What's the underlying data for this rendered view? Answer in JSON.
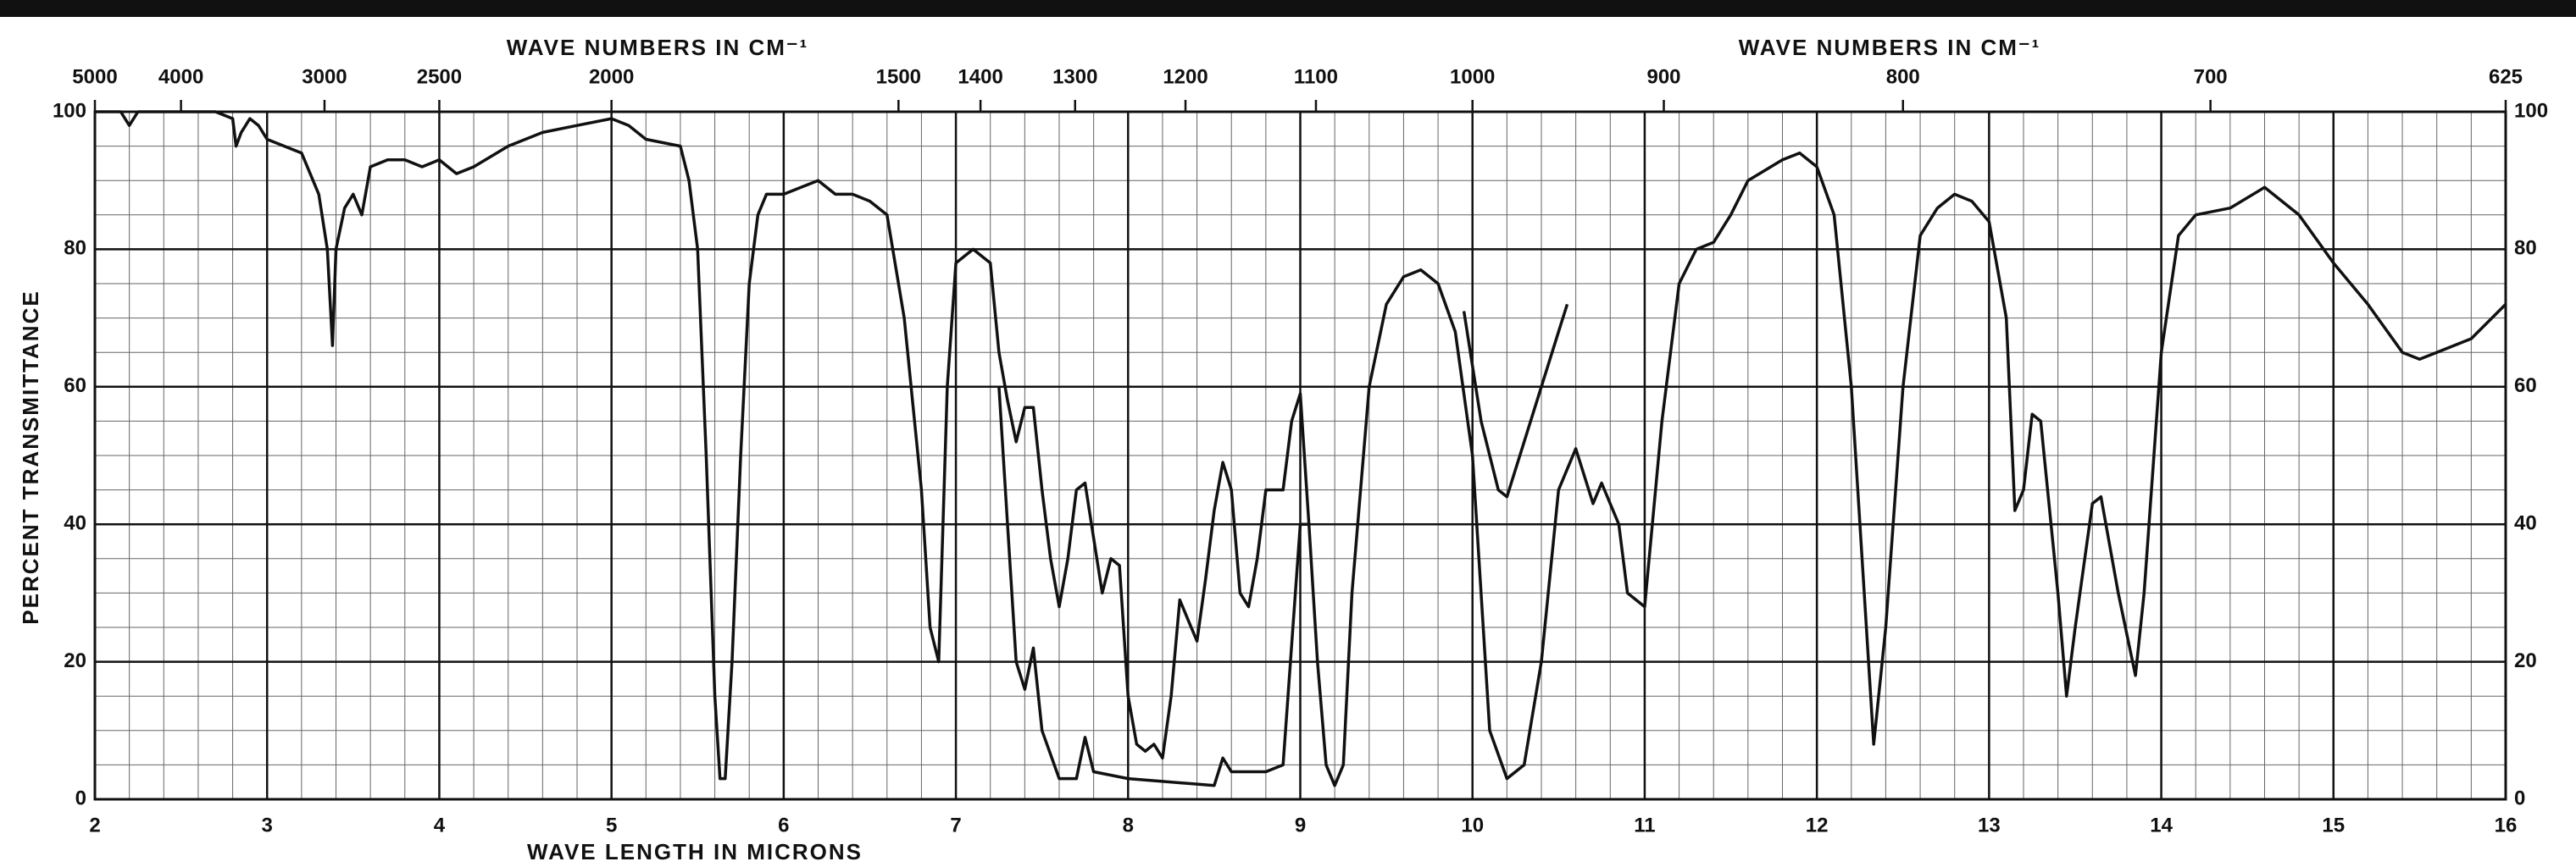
{
  "chart_data": {
    "type": "line",
    "x2label": "WAVE NUMBERS IN CM⁻¹",
    "xlabel": "WAVE LENGTH IN MICRONS",
    "ylabel": "PERCENT TRANSMITTANCE",
    "xlim": [
      2,
      16
    ],
    "xticks": [
      2,
      3,
      4,
      5,
      6,
      7,
      8,
      9,
      10,
      11,
      12,
      13,
      14,
      15,
      16
    ],
    "x2ticks": [
      5000,
      4000,
      3000,
      2500,
      2000,
      1500,
      1400,
      1300,
      1200,
      1100,
      1000,
      900,
      800,
      700,
      625
    ],
    "ylim": [
      0,
      100
    ],
    "yticks": [
      0,
      20,
      40,
      60,
      80,
      100
    ],
    "grid": true,
    "series": [
      {
        "color": "#111111",
        "x": [
          2.0,
          2.15,
          2.2,
          2.25,
          2.5,
          2.7,
          2.8,
          2.82,
          2.85,
          2.9,
          2.95,
          3.0,
          3.1,
          3.2,
          3.3,
          3.35,
          3.38,
          3.4,
          3.45,
          3.5,
          3.55,
          3.6,
          3.7,
          3.8,
          3.9,
          4.0,
          4.1,
          4.2,
          4.4,
          4.6,
          4.8,
          5.0,
          5.1,
          5.2,
          5.4,
          5.45,
          5.5,
          5.55,
          5.6,
          5.63,
          5.66,
          5.7,
          5.75,
          5.8,
          5.85,
          5.9,
          6.0,
          6.1,
          6.2,
          6.3,
          6.4,
          6.5,
          6.6,
          6.7,
          6.8,
          6.85,
          6.9,
          6.95,
          7.0,
          7.1,
          7.2,
          7.25,
          7.3,
          7.35,
          7.4,
          7.45,
          7.5,
          7.55,
          7.6,
          7.65,
          7.7,
          7.75,
          7.8,
          7.85,
          7.9,
          7.95,
          8.0,
          8.05,
          8.1,
          8.15,
          8.2,
          8.25,
          8.3,
          8.35,
          8.4,
          8.45,
          8.5,
          8.55,
          8.6,
          8.65,
          8.7,
          8.75,
          8.8,
          8.9,
          8.95,
          9.0,
          9.05,
          9.1,
          9.15,
          9.2,
          9.25,
          9.3,
          9.4,
          9.5,
          9.6,
          9.7,
          9.8,
          9.9,
          10.0,
          10.1,
          10.2,
          10.3,
          10.4,
          10.5,
          10.6,
          10.7,
          10.75,
          10.85,
          10.9,
          11.0,
          11.1,
          11.2,
          11.3,
          11.4,
          11.5,
          11.6,
          11.8,
          11.9,
          12.0,
          12.1,
          12.2,
          12.3,
          12.33,
          12.4,
          12.5,
          12.6,
          12.7,
          12.8,
          12.9,
          13.0,
          13.1,
          13.15,
          13.2,
          13.25,
          13.3,
          13.4,
          13.45,
          13.5,
          13.6,
          13.65,
          13.75,
          13.85,
          13.9,
          14.0,
          14.1,
          14.2,
          14.4,
          14.6,
          14.8,
          15.0,
          15.2,
          15.4,
          15.5,
          15.6,
          15.8,
          16.0
        ],
        "values": [
          100,
          100,
          98,
          100,
          100,
          100,
          99,
          95,
          97,
          99,
          98,
          96,
          95,
          94,
          88,
          80,
          66,
          80,
          86,
          88,
          85,
          92,
          93,
          93,
          92,
          93,
          91,
          92,
          95,
          97,
          98,
          99,
          98,
          96,
          95,
          90,
          80,
          50,
          15,
          3,
          3,
          20,
          50,
          75,
          85,
          88,
          88,
          89,
          90,
          88,
          88,
          87,
          85,
          70,
          45,
          25,
          20,
          60,
          78,
          80,
          78,
          65,
          58,
          52,
          57,
          57,
          45,
          35,
          28,
          35,
          45,
          46,
          38,
          30,
          35,
          34,
          15,
          8,
          7,
          8,
          6,
          15,
          29,
          26,
          23,
          32,
          42,
          49,
          45,
          30,
          28,
          35,
          45,
          45,
          55,
          59,
          40,
          20,
          5,
          2,
          5,
          30,
          60,
          72,
          76,
          77,
          75,
          68,
          50,
          10,
          3,
          5,
          20,
          45,
          51,
          43,
          46,
          40,
          30,
          28,
          55,
          75,
          80,
          81,
          85,
          90,
          93,
          94,
          92,
          85,
          60,
          20,
          8,
          25,
          60,
          82,
          86,
          88,
          87,
          84,
          70,
          42,
          45,
          56,
          55,
          30,
          15,
          25,
          43,
          44,
          30,
          18,
          30,
          65,
          82,
          85,
          86,
          89,
          85,
          78,
          72,
          65,
          64,
          65,
          67,
          72
        ]
      },
      {
        "color": "#111111",
        "x": [
          7.25,
          7.3,
          7.35,
          7.4,
          7.45,
          7.5,
          7.6,
          7.7,
          7.75,
          7.8,
          8.0,
          8.5,
          8.55,
          8.6,
          8.8,
          8.9,
          9.0,
          9.05
        ],
        "values": [
          60,
          40,
          20,
          16,
          22,
          10,
          3,
          3,
          9,
          4,
          3,
          2,
          6,
          4,
          4,
          5,
          40,
          40
        ]
      },
      {
        "color": "#111111",
        "x": [
          9.95,
          10.05,
          10.15,
          10.2,
          10.3,
          10.4,
          10.5,
          10.55
        ],
        "values": [
          71,
          55,
          45,
          44,
          52,
          60,
          68,
          72
        ]
      }
    ]
  }
}
